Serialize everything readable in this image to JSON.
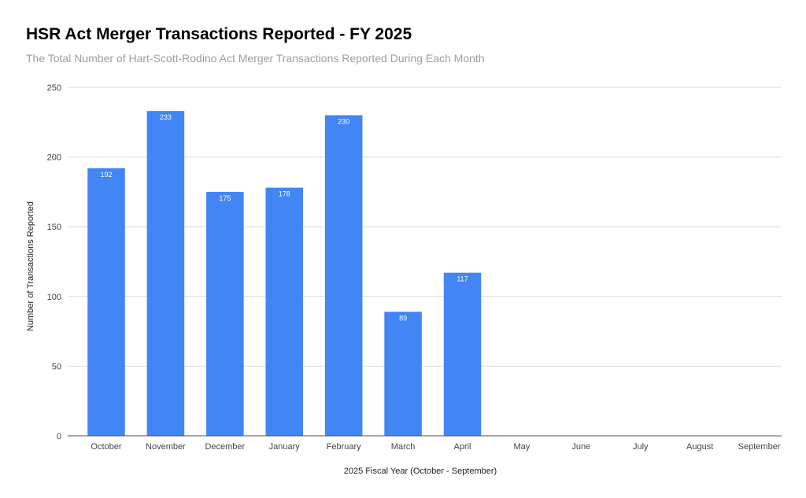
{
  "chart_data": {
    "type": "bar",
    "title": "HSR Act Merger Transactions Reported - FY 2025",
    "subtitle": "The Total Number of Hart-Scott-Rodino Act Merger Transactions Reported During Each Month",
    "xlabel": "2025 Fiscal Year (October - September)",
    "ylabel": "Number of Transactions Reported",
    "categories": [
      "October",
      "November",
      "December",
      "January",
      "February",
      "March",
      "April",
      "May",
      "June",
      "July",
      "August",
      "September"
    ],
    "values": [
      192,
      233,
      175,
      178,
      230,
      89,
      117,
      null,
      null,
      null,
      null,
      null
    ],
    "ylim": [
      0,
      250
    ],
    "yticks": [
      0,
      50,
      100,
      150,
      200,
      250
    ],
    "bar_color": "#4285f4",
    "grid": true,
    "legend": "none"
  }
}
